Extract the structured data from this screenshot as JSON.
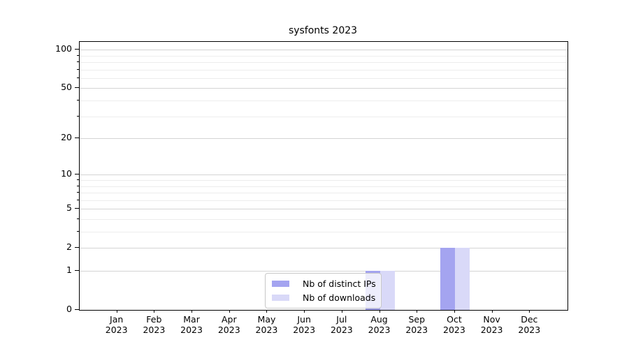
{
  "title": "sysfonts 2023",
  "chart_data": {
    "type": "bar",
    "title": "sysfonts 2023",
    "categories": [
      {
        "month": "Jan",
        "year": "2023"
      },
      {
        "month": "Feb",
        "year": "2023"
      },
      {
        "month": "Mar",
        "year": "2023"
      },
      {
        "month": "Apr",
        "year": "2023"
      },
      {
        "month": "May",
        "year": "2023"
      },
      {
        "month": "Jun",
        "year": "2023"
      },
      {
        "month": "Jul",
        "year": "2023"
      },
      {
        "month": "Aug",
        "year": "2023"
      },
      {
        "month": "Sep",
        "year": "2023"
      },
      {
        "month": "Oct",
        "year": "2023"
      },
      {
        "month": "Nov",
        "year": "2023"
      },
      {
        "month": "Dec",
        "year": "2023"
      }
    ],
    "series": [
      {
        "name": "Nb of distinct IPs",
        "color": "#a4a4f0",
        "values": [
          0,
          0,
          0,
          0,
          0,
          0,
          0,
          1,
          0,
          2,
          0,
          0
        ]
      },
      {
        "name": "Nb of downloads",
        "color": "#d9d9f8",
        "values": [
          0,
          0,
          0,
          0,
          0,
          0,
          0,
          1,
          0,
          2,
          0,
          0
        ]
      }
    ],
    "yscale": "log1p",
    "yticks": [
      0,
      1,
      2,
      5,
      10,
      20,
      50,
      100
    ],
    "minor_yticks": [
      3,
      4,
      6,
      7,
      8,
      9,
      30,
      40,
      60,
      70,
      80,
      90
    ],
    "ylim": [
      0,
      115
    ],
    "xlabel": "",
    "ylabel": "",
    "grid": "horizontal",
    "legend_position": "bottom-center"
  },
  "colors": {
    "grid_major": "#d4d4d4",
    "grid_minor": "#ededed",
    "spine": "#000000",
    "legend_border": "#c8c8c8",
    "background": "#ffffff"
  }
}
